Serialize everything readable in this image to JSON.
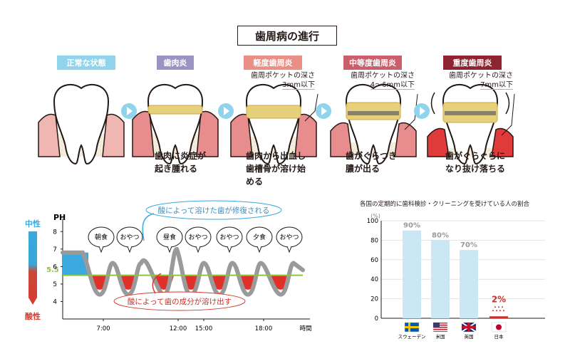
{
  "title": "歯周病の進行",
  "colors": {
    "normal": "#8fd3ec",
    "gingivitis": "#9b93c4",
    "mild": "#eb8e86",
    "moderate": "#c95f6b",
    "severe": "#8e2430",
    "gum": "#e8a0a0",
    "tartar": "#e6d07a",
    "bone": "#f4ecdc",
    "acid": "#e0302a",
    "base": "#39a9de",
    "green": "#8cc63f"
  },
  "stages": [
    {
      "label": "正常な状態",
      "pocket": null,
      "pocket_depth": null,
      "caption": []
    },
    {
      "label": "歯肉炎",
      "pocket": null,
      "pocket_depth": null,
      "caption": [
        "歯肉に炎症が",
        "起き腫れる"
      ]
    },
    {
      "label": "軽度歯周炎",
      "pocket": "歯周ポケットの深さ",
      "pocket_depth": "3mm以下",
      "caption": [
        "歯肉から出血し",
        "歯槽骨が溶け始",
        "める"
      ]
    },
    {
      "label": "中等度歯周炎",
      "pocket": "歯周ポケットの深さ",
      "pocket_depth": "4〜6mm以下",
      "caption": [
        "歯がぐらつき",
        "膿が出る"
      ]
    },
    {
      "label": "重度歯周炎",
      "pocket": "歯周ポケットの深さ",
      "pocket_depth": "7mm以下",
      "caption": [
        "歯がぐらぐらに",
        "なり抜け落ちる"
      ]
    }
  ],
  "ph_chart": {
    "y_title": "PH",
    "neutral_label": "中性",
    "acid_label": "酸性",
    "threshold_label": "5.5",
    "y_ticks": [
      "8",
      "7",
      "6",
      "5",
      "4"
    ],
    "x_ticks": [
      "7:00",
      "12:00",
      "15:00",
      "18:00"
    ],
    "x_unit": "時間",
    "meals": [
      "朝食",
      "おやつ",
      "昼食",
      "おやつ",
      "おやつ",
      "夕食",
      "おやつ"
    ],
    "repair_note": "酸によって溶けた歯が修復される",
    "dissolve_note": "酸によって歯の成分が溶け出す",
    "chart_data": {
      "type": "line",
      "threshold": 5.5,
      "ylim": [
        3,
        8.5
      ]
    }
  },
  "bar_chart": {
    "title": "各国の定期的に歯科検診・クリーニングを受けている人の割合",
    "unit": "(%)",
    "y_ticks": [
      "100",
      "80",
      "60",
      "40",
      "20",
      "0"
    ],
    "chart_data": {
      "type": "bar",
      "categories": [
        "スウェーデン",
        "米国",
        "英国",
        "日本"
      ],
      "values": [
        90,
        80,
        70,
        2
      ],
      "value_labels": [
        "90%",
        "80%",
        "70%",
        "2%"
      ],
      "ylim": [
        0,
        100
      ]
    }
  }
}
